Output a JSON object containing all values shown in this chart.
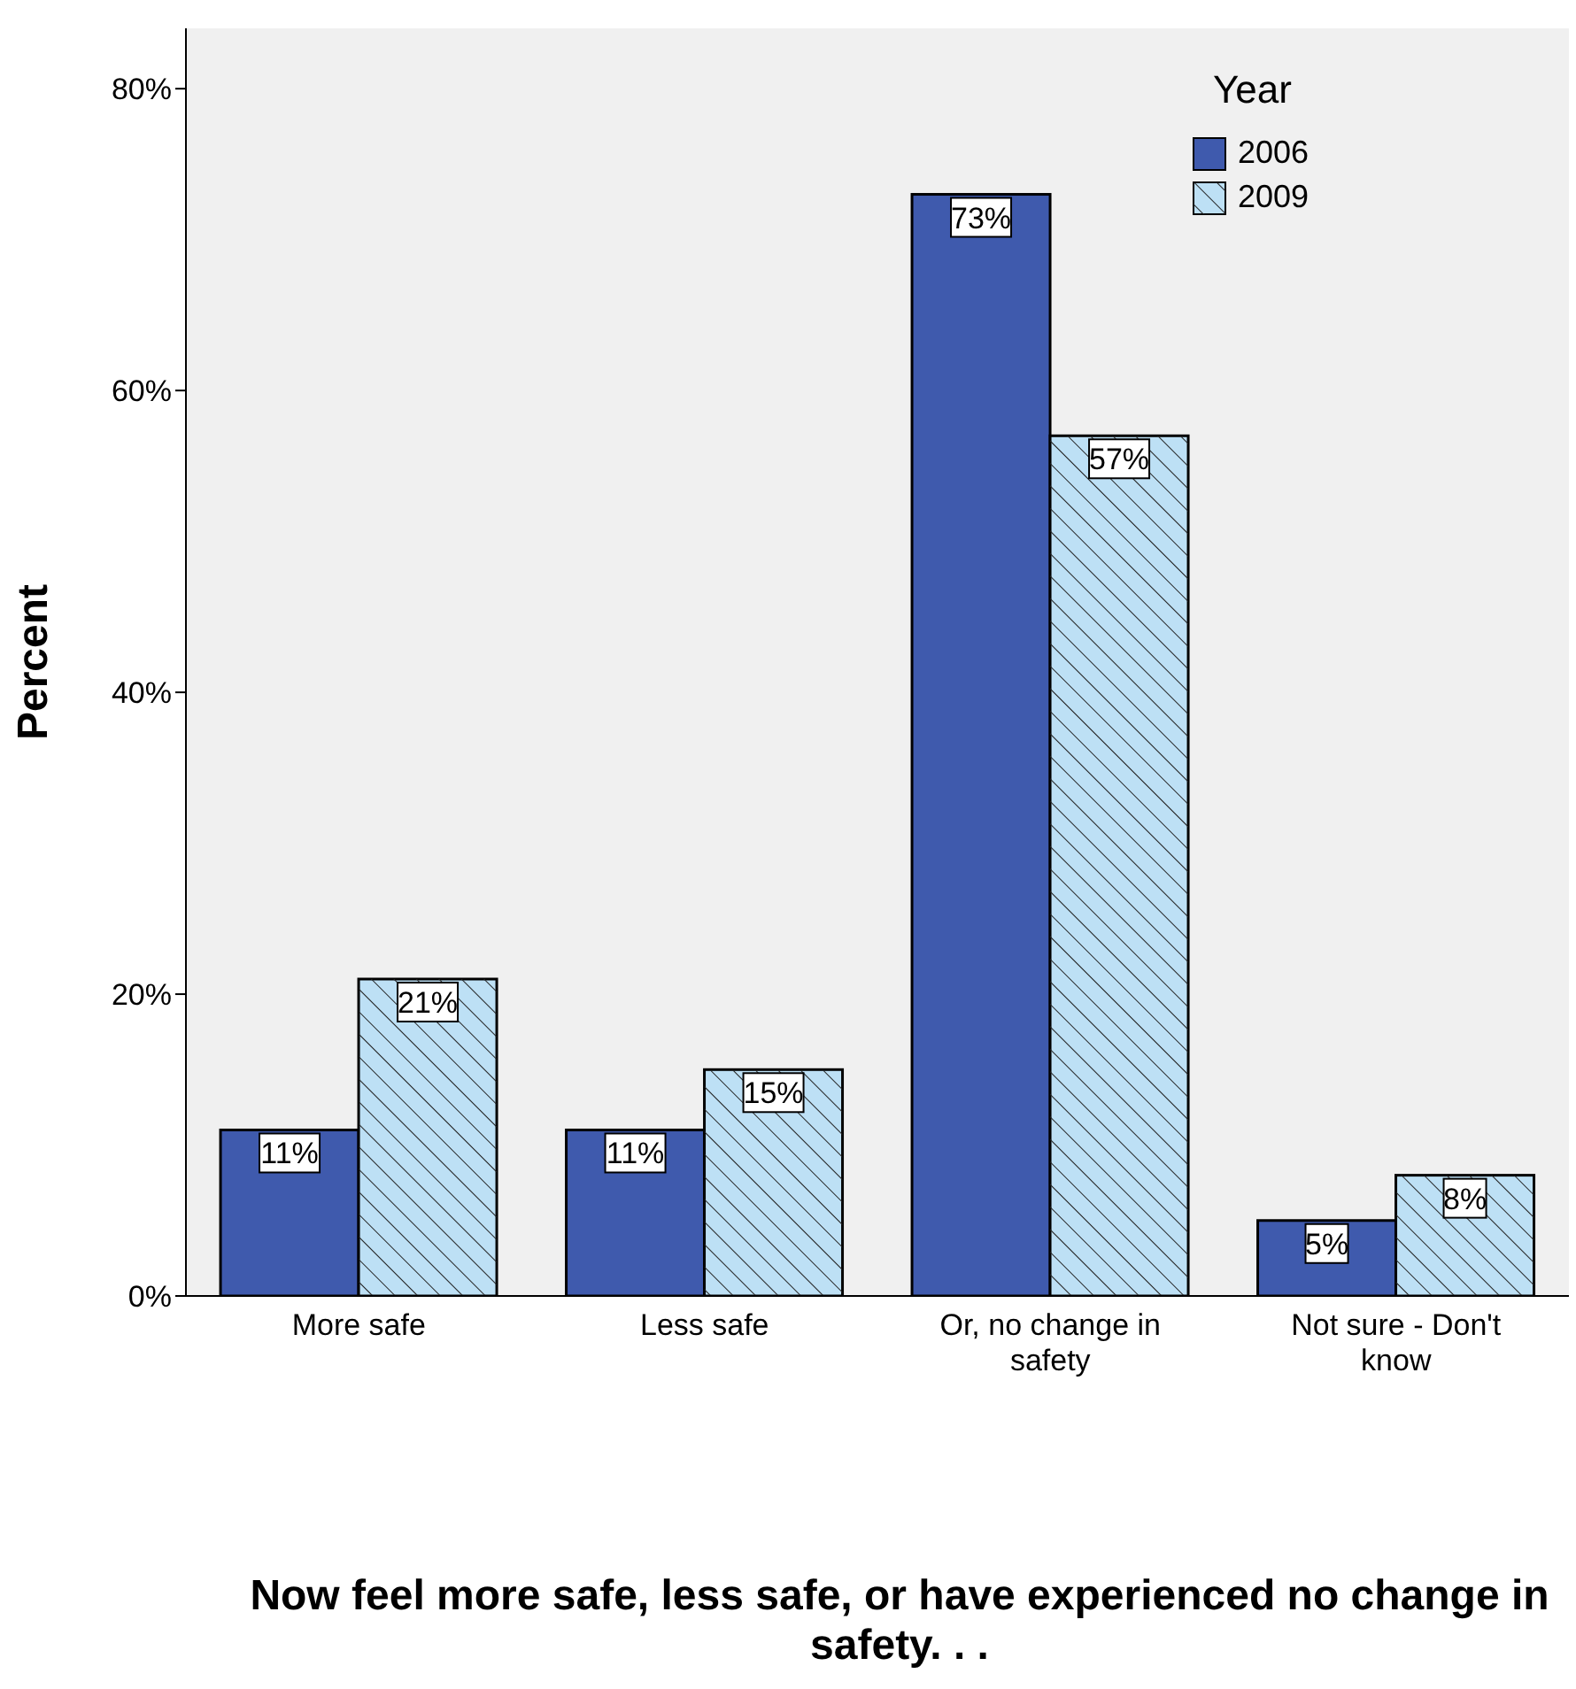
{
  "chart_data": {
    "type": "bar",
    "xlabel": "Now feel more safe, less safe, or have experienced no change in safety. . .",
    "ylabel": "Percent",
    "legend_title": "Year",
    "categories": [
      "More safe",
      "Less safe",
      "Or, no change in safety",
      "Not sure - Don't know"
    ],
    "series": [
      {
        "name": "2006",
        "color": "#3f5aad",
        "values": [
          11,
          11,
          73,
          5
        ],
        "value_labels": [
          "11%",
          "11%",
          "73%",
          "5%"
        ]
      },
      {
        "name": "2009",
        "color": "#bde0f5",
        "values": [
          21,
          15,
          57,
          8
        ],
        "value_labels": [
          "21%",
          "15%",
          "57%",
          "8%"
        ]
      }
    ],
    "ylim": [
      0,
      84
    ],
    "yticks": [
      {
        "value": 0,
        "label": "0%"
      },
      {
        "value": 20,
        "label": "20%"
      },
      {
        "value": 40,
        "label": "40%"
      },
      {
        "value": 60,
        "label": "60%"
      },
      {
        "value": 80,
        "label": "80%"
      }
    ],
    "grid": false,
    "legend": "top right"
  }
}
